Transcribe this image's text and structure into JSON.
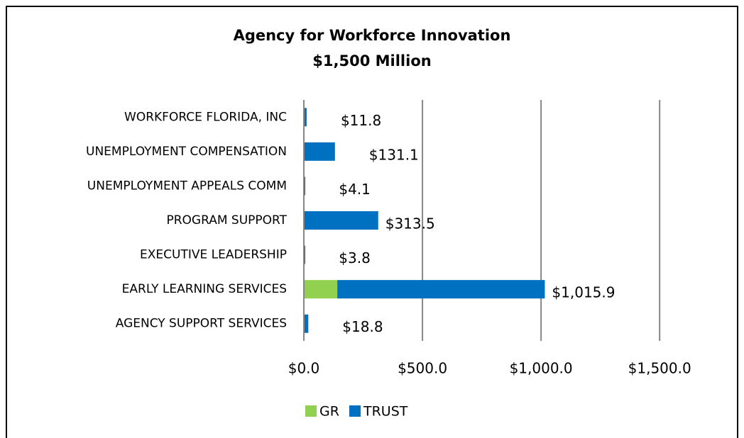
{
  "chart_data": {
    "type": "stacked_barh",
    "title": "Agency for Workforce Innovation",
    "subtitle": "$1,500 Million",
    "categories": [
      "WORKFORCE FLORIDA, INC",
      "UNEMPLOYMENT COMPENSATION",
      "UNEMPLOYMENT APPEALS COMM",
      "PROGRAM SUPPORT",
      "EXECUTIVE LEADERSHIP",
      "EARLY LEARNING SERVICES",
      "AGENCY SUPPORT SERVICES"
    ],
    "series": [
      {
        "name": "GR",
        "color": "#92d050",
        "values": [
          0,
          0,
          0,
          0,
          0,
          141,
          0
        ]
      },
      {
        "name": "TRUST",
        "color": "#0070c0",
        "values": [
          11.8,
          131.1,
          4.1,
          313.5,
          3.8,
          874.9,
          18.8
        ]
      }
    ],
    "totals": [
      11.8,
      131.1,
      4.1,
      313.5,
      3.8,
      1015.9,
      18.8
    ],
    "total_labels": [
      "$11.8",
      "$131.1",
      "$4.1",
      "$313.5",
      "$3.8",
      "$1,015.9",
      "$18.8"
    ],
    "xlim": [
      0,
      1700
    ],
    "xticks": [
      {
        "value": 0,
        "label": "$0.0"
      },
      {
        "value": 500,
        "label": "$500.0"
      },
      {
        "value": 1000,
        "label": "$1,000.0"
      },
      {
        "value": 1500,
        "label": "$1,500.0"
      }
    ],
    "grid": true,
    "legend": "bottom"
  }
}
